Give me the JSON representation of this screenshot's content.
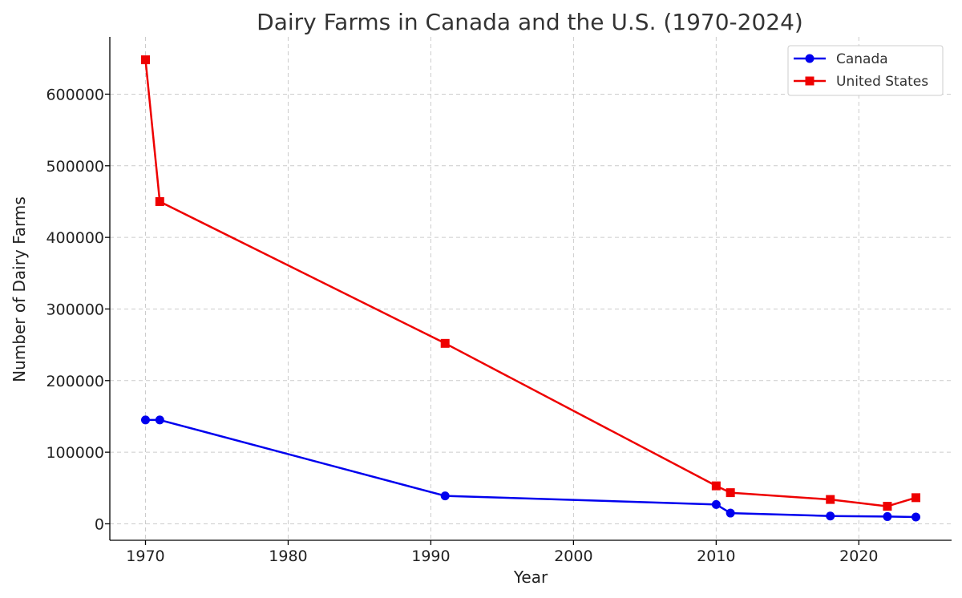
{
  "chart_data": {
    "type": "line",
    "title": "Dairy Farms in Canada and the U.S. (1970-2024)",
    "xlabel": "Year",
    "ylabel": "Number of Dairy Farms",
    "xlim": [
      1967.5,
      2026.5
    ],
    "ylim": [
      -23000,
      680000
    ],
    "xticks": [
      1970,
      1980,
      1990,
      2000,
      2010,
      2020
    ],
    "yticks": [
      0,
      100000,
      200000,
      300000,
      400000,
      500000,
      600000
    ],
    "grid": true,
    "legend_position": "top-right",
    "series": [
      {
        "name": "Canada",
        "color": "#0000ee",
        "marker": "circle",
        "x": [
          1970,
          1971,
          1991,
          2010,
          2011,
          2018,
          2022,
          2024
        ],
        "y": [
          145000,
          145000,
          39000,
          27000,
          15000,
          10900,
          10100,
          9500
        ]
      },
      {
        "name": "United States",
        "color": "#ee0000",
        "marker": "square",
        "x": [
          1970,
          1971,
          1991,
          2010,
          2011,
          2018,
          2022,
          2024
        ],
        "y": [
          648000,
          450000,
          252000,
          53000,
          43500,
          34000,
          24500,
          36500
        ]
      }
    ]
  }
}
